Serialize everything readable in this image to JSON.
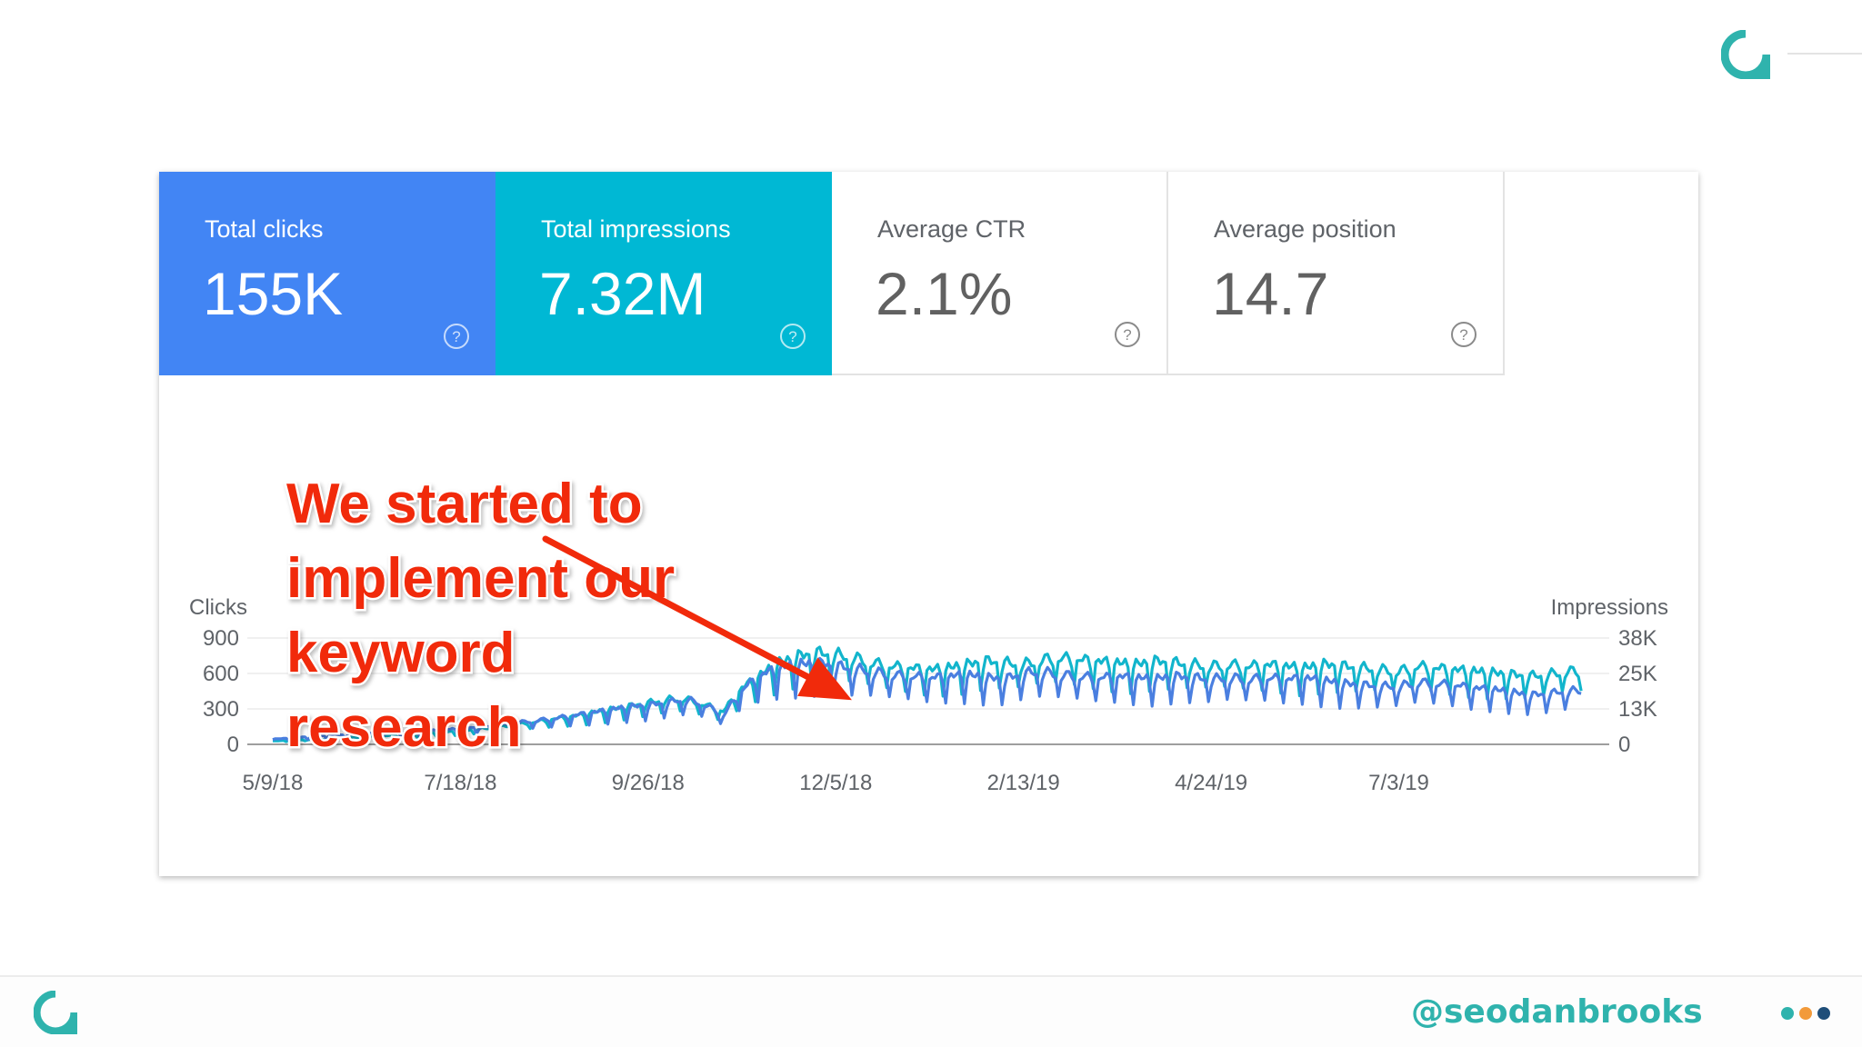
{
  "colors": {
    "clicks_tile": "#4285f4",
    "impressions_tile": "#00b8d4",
    "clicks_line": "#4a7fe0",
    "impressions_line": "#12b5cc",
    "annotation": "#f12a0b",
    "brand_teal": "#2fb3ad",
    "dot_orange": "#f29a3a",
    "dot_navy": "#1f4e79"
  },
  "metrics": [
    {
      "label": "Total clicks",
      "value": "155K",
      "icon": "help-circle-icon"
    },
    {
      "label": "Total impressions",
      "value": "7.32M",
      "icon": "help-circle-icon"
    },
    {
      "label": "Average CTR",
      "value": "2.1%",
      "icon": "help-circle-icon"
    },
    {
      "label": "Average position",
      "value": "14.7",
      "icon": "help-circle-icon"
    }
  ],
  "chart_data": {
    "type": "line",
    "left_axis_title": "Clicks",
    "right_axis_title": "Impressions",
    "y_left_ticks": [
      "900",
      "600",
      "300",
      "0"
    ],
    "y_right_ticks": [
      "38K",
      "25K",
      "13K",
      "0"
    ],
    "ylim_left": [
      0,
      900
    ],
    "ylim_right": [
      0,
      38000
    ],
    "x_tick_labels": [
      "5/9/18",
      "7/18/18",
      "9/26/18",
      "12/5/18",
      "2/13/19",
      "4/24/19",
      "7/3/19"
    ],
    "x_tick_days": [
      0,
      70,
      140,
      210,
      280,
      350,
      420
    ],
    "x_days_total": 489,
    "grid": true,
    "series": [
      {
        "name": "Clicks",
        "axis": "left",
        "weekly_baseline": [
          35,
          45,
          55,
          65,
          70,
          75,
          80,
          85,
          90,
          100,
          110,
          120,
          130,
          150,
          165,
          180,
          200,
          220,
          240,
          260,
          270,
          290,
          310,
          280,
          200,
          380,
          480,
          530,
          550,
          560,
          540,
          520,
          500,
          480,
          470,
          460,
          470,
          480,
          460,
          450,
          490,
          500,
          480,
          470,
          460,
          470,
          460,
          450,
          470,
          460,
          450,
          460,
          450,
          460,
          450,
          460,
          440,
          420,
          410,
          400,
          400,
          430,
          420,
          410,
          390,
          380,
          360,
          340,
          350,
          370
        ],
        "weekly_swing": 0.5
      },
      {
        "name": "Impressions",
        "axis": "right",
        "weekly_baseline": [
          1000,
          1300,
          1500,
          1800,
          2000,
          2300,
          2600,
          2900,
          3300,
          3700,
          4100,
          4600,
          5200,
          6000,
          6800,
          7700,
          8500,
          9500,
          10500,
          11500,
          12500,
          13500,
          13800,
          12000,
          10000,
          17000,
          21000,
          24500,
          26500,
          27500,
          27000,
          26000,
          24500,
          23500,
          23000,
          22500,
          23000,
          24000,
          25000,
          24500,
          24000,
          25500,
          26000,
          25500,
          25000,
          24500,
          24000,
          25000,
          24500,
          24000,
          23500,
          24000,
          23500,
          24000,
          23500,
          23000,
          24000,
          23500,
          23000,
          22500,
          22000,
          23500,
          23000,
          22500,
          22000,
          21500,
          21000,
          20500,
          21000,
          22000
        ],
        "weekly_swing": 0.42
      }
    ],
    "annotation": {
      "lines": [
        "We started to",
        "implement our",
        "keyword",
        "research"
      ],
      "arrow_target_day": 216,
      "arrow_target_value": 375
    }
  },
  "footer": {
    "handle": "@seodanbrooks"
  }
}
